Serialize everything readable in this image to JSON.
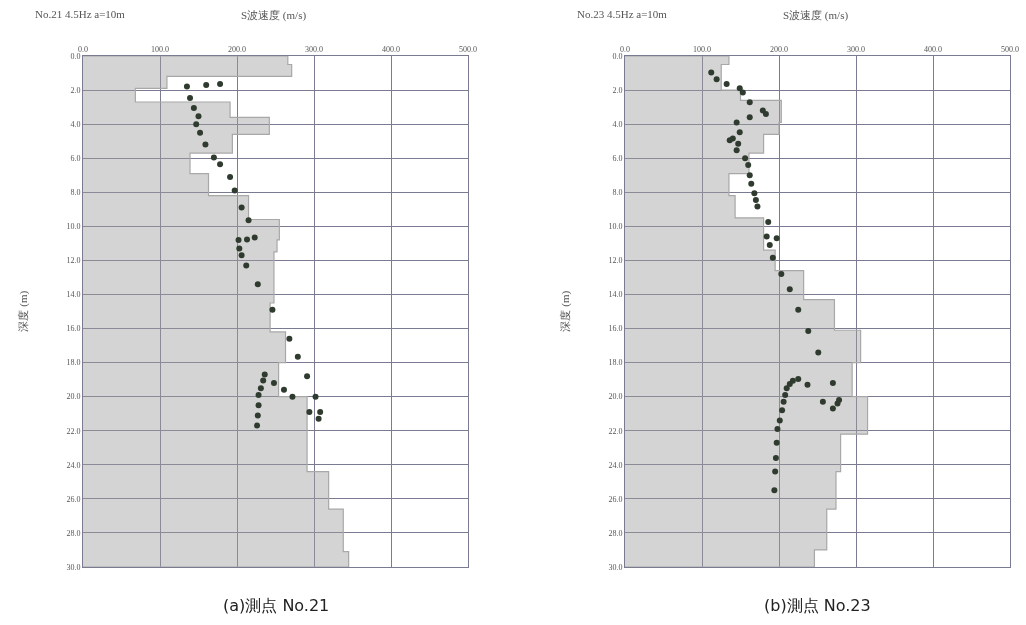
{
  "chart_data": [
    {
      "type": "area",
      "title": "No.21 4.5Hz a=10m",
      "xlabel": "S波速度 (m/s)",
      "ylabel": "深度 (m)",
      "annotations": [
        "(a)測点 No.21"
      ],
      "xlim": [
        0,
        500
      ],
      "ylim": [
        30,
        0
      ],
      "grid": true,
      "xticks": [
        {
          "value": 0,
          "label": "0.0"
        },
        {
          "value": 100,
          "label": "100.0"
        },
        {
          "value": 200,
          "label": "200.0"
        },
        {
          "value": 300,
          "label": "300.0"
        },
        {
          "value": 400,
          "label": "400.0"
        },
        {
          "value": 500,
          "label": "500.0"
        }
      ],
      "yticks": [
        {
          "value": 0,
          "label": "0.0"
        },
        {
          "value": 2,
          "label": "2.0"
        },
        {
          "value": 4,
          "label": "4.0"
        },
        {
          "value": 6,
          "label": "6.0"
        },
        {
          "value": 8,
          "label": "8.0"
        },
        {
          "value": 10,
          "label": "10.0"
        },
        {
          "value": 12,
          "label": "12.0"
        },
        {
          "value": 14,
          "label": "14.0"
        },
        {
          "value": 16,
          "label": "16.0"
        },
        {
          "value": 18,
          "label": "18.0"
        },
        {
          "value": 20,
          "label": "20.0"
        },
        {
          "value": 22,
          "label": "22.0"
        },
        {
          "value": 24,
          "label": "24.0"
        },
        {
          "value": 26,
          "label": "26.0"
        },
        {
          "value": 28,
          "label": "28.0"
        },
        {
          "value": 30,
          "label": "30.0"
        }
      ],
      "series": [
        {
          "color": "#a8a8a8",
          "x": [
            0,
            266,
            266,
            271,
            271,
            109,
            109,
            68,
            68,
            191,
            191,
            242,
            242,
            194,
            194,
            139,
            139,
            163,
            163,
            215,
            215,
            255,
            255,
            252,
            252,
            248,
            248,
            243,
            243,
            263,
            263,
            254,
            254,
            291,
            291,
            319,
            319,
            338,
            338,
            345,
            345,
            0
          ],
          "values": [
            0,
            0,
            0.5,
            0.5,
            1.2,
            1.2,
            1.9,
            1.9,
            2.7,
            2.7,
            3.6,
            3.6,
            4.6,
            4.6,
            5.7,
            5.7,
            6.9,
            6.9,
            8.2,
            8.2,
            9.6,
            9.6,
            10.8,
            10.8,
            11.5,
            11.5,
            14.5,
            14.5,
            16.2,
            16.2,
            18.0,
            18.0,
            20.0,
            20.0,
            24.4,
            24.4,
            26.6,
            26.6,
            29.1,
            29.1,
            30,
            30
          ]
        },
        {
          "type": "scatter",
          "color": "#2f3b2f",
          "x": [
            178,
            160,
            135,
            139,
            144,
            150,
            147,
            152,
            159,
            170,
            178,
            191,
            197,
            206,
            215,
            223,
            213,
            202,
            203,
            206,
            212,
            227,
            246,
            268,
            279,
            291,
            236,
            234,
            231,
            228,
            228,
            227,
            226,
            248,
            261,
            272,
            302,
            294,
            308,
            306
          ],
          "values": [
            1.65,
            1.7,
            1.79,
            2.47,
            3.05,
            3.53,
            4.0,
            4.5,
            5.2,
            5.96,
            6.35,
            7.1,
            7.9,
            8.9,
            9.65,
            10.66,
            10.78,
            10.8,
            11.3,
            11.7,
            12.3,
            13.4,
            14.9,
            16.6,
            17.65,
            18.8,
            18.7,
            19.05,
            19.5,
            19.9,
            20.5,
            21.1,
            21.7,
            19.2,
            19.6,
            20.0,
            20.0,
            20.9,
            20.9,
            21.3
          ]
        }
      ]
    },
    {
      "type": "area",
      "title": "No.23 4.5Hz a=10m",
      "xlabel": "S波速度 (m/s)",
      "ylabel": "深度 (m)",
      "annotations": [
        "(b)測点 No.23"
      ],
      "xlim": [
        0,
        500
      ],
      "ylim": [
        30,
        0
      ],
      "grid": true,
      "xticks": [
        {
          "value": 0,
          "label": "0.0"
        },
        {
          "value": 100,
          "label": "100.0"
        },
        {
          "value": 200,
          "label": "200.0"
        },
        {
          "value": 300,
          "label": "300.0"
        },
        {
          "value": 400,
          "label": "400.0"
        },
        {
          "value": 500,
          "label": "500.0"
        }
      ],
      "yticks": [
        {
          "value": 0,
          "label": "0.0"
        },
        {
          "value": 2,
          "label": "2.0"
        },
        {
          "value": 4,
          "label": "4.0"
        },
        {
          "value": 6,
          "label": "6.0"
        },
        {
          "value": 8,
          "label": "8.0"
        },
        {
          "value": 10,
          "label": "10.0"
        },
        {
          "value": 12,
          "label": "12.0"
        },
        {
          "value": 14,
          "label": "14.0"
        },
        {
          "value": 16,
          "label": "16.0"
        },
        {
          "value": 18,
          "label": "18.0"
        },
        {
          "value": 20,
          "label": "20.0"
        },
        {
          "value": 22,
          "label": "22.0"
        },
        {
          "value": 24,
          "label": "24.0"
        },
        {
          "value": 26,
          "label": "26.0"
        },
        {
          "value": 28,
          "label": "28.0"
        },
        {
          "value": 30,
          "label": "30.0"
        }
      ],
      "series": [
        {
          "color": "#a8a8a8",
          "x": [
            0,
            135,
            135,
            125,
            125,
            150,
            150,
            203,
            203,
            200,
            200,
            180,
            180,
            161,
            161,
            135,
            135,
            143,
            143,
            180,
            180,
            195,
            195,
            232,
            232,
            272,
            272,
            306,
            306,
            295,
            295,
            315,
            315,
            280,
            280,
            274,
            274,
            262,
            262,
            246,
            246,
            0
          ],
          "values": [
            0,
            0,
            0.5,
            0.5,
            2.0,
            2.0,
            2.6,
            2.6,
            3.9,
            3.9,
            4.6,
            4.6,
            5.7,
            5.7,
            6.9,
            6.9,
            8.2,
            8.2,
            9.5,
            9.5,
            11.4,
            11.4,
            12.6,
            12.6,
            14.3,
            14.3,
            16.1,
            16.1,
            18.0,
            18.0,
            20.0,
            20.0,
            22.2,
            22.2,
            24.4,
            24.4,
            26.6,
            26.6,
            29.0,
            29.0,
            30,
            30
          ]
        },
        {
          "type": "scatter",
          "color": "#2f3b2f",
          "x": [
            112,
            119,
            132,
            149,
            153,
            162,
            179,
            183,
            162,
            145,
            149,
            140,
            136,
            147,
            145,
            156,
            160,
            162,
            164,
            168,
            170,
            172,
            186,
            184,
            197,
            188,
            192,
            203,
            214,
            225,
            238,
            251,
            225,
            218,
            214,
            210,
            237,
            270,
            208,
            206,
            204,
            201,
            198,
            197,
            196,
            195,
            194,
            257,
            270,
            276,
            278
          ],
          "values": [
            0.97,
            1.36,
            1.65,
            1.9,
            2.14,
            2.72,
            3.2,
            3.4,
            3.6,
            3.9,
            4.47,
            4.85,
            4.95,
            5.15,
            5.53,
            6.0,
            6.4,
            7.0,
            7.5,
            8.06,
            8.45,
            8.83,
            9.75,
            10.6,
            10.7,
            11.1,
            11.85,
            12.8,
            13.7,
            14.9,
            16.15,
            17.4,
            18.97,
            19.06,
            19.26,
            19.5,
            19.3,
            19.2,
            19.9,
            20.3,
            20.8,
            21.4,
            21.9,
            22.7,
            23.6,
            24.4,
            25.5,
            20.3,
            20.7,
            20.4,
            20.2
          ]
        }
      ]
    }
  ]
}
